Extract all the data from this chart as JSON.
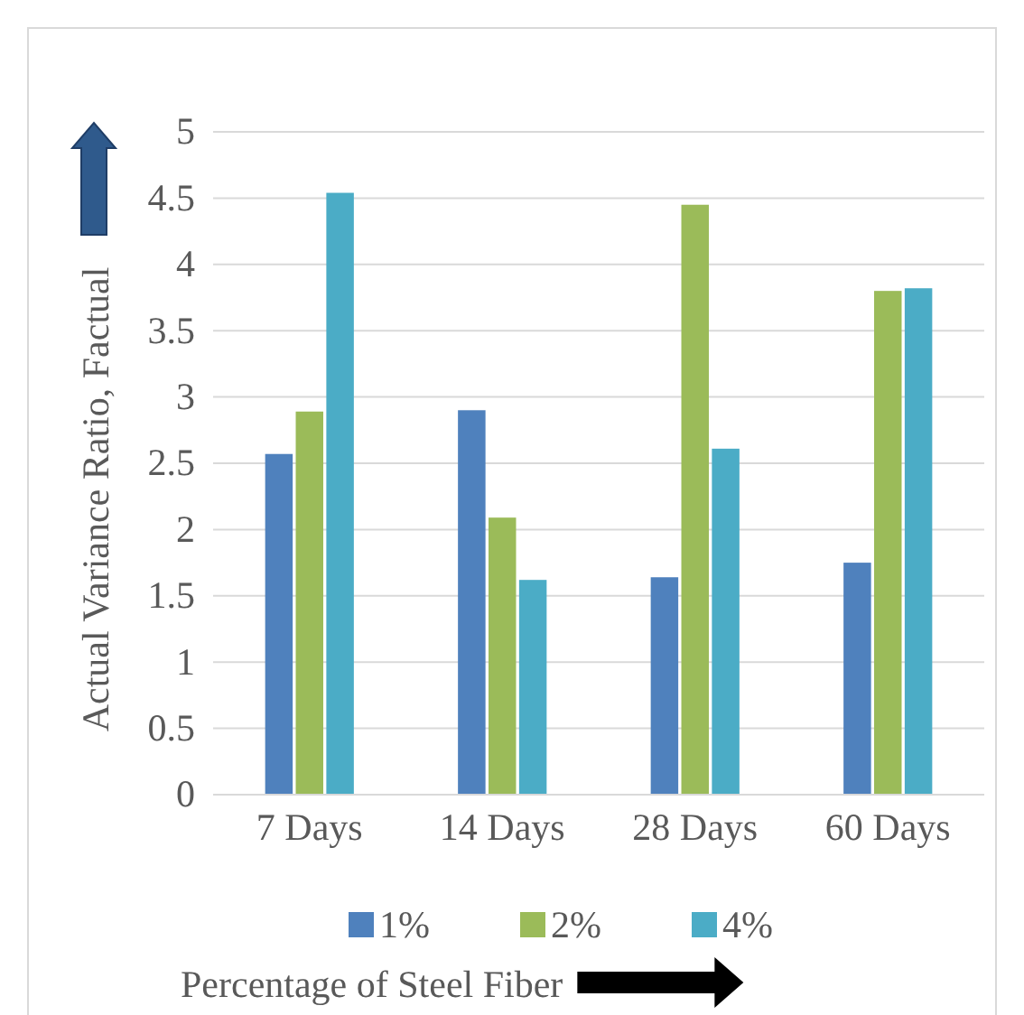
{
  "chart_data": {
    "type": "bar",
    "xlabel": "Percentage of Steel Fiber",
    "ylabel": "Actual Variance Ratio, Factual",
    "categories": [
      "7 Days",
      "14 Days",
      "28 Days",
      "60 Days"
    ],
    "series": [
      {
        "name": "1%",
        "color": "#4f81bd",
        "values": [
          2.57,
          2.9,
          1.64,
          1.75
        ]
      },
      {
        "name": "2%",
        "color": "#9bbb59",
        "values": [
          2.89,
          2.09,
          4.45,
          3.8
        ]
      },
      {
        "name": "4%",
        "color": "#4bacc6",
        "values": [
          4.54,
          1.62,
          2.61,
          3.82
        ]
      }
    ],
    "ylim": [
      0,
      5
    ],
    "yticks": [
      0,
      0.5,
      1,
      1.5,
      2,
      2.5,
      3,
      3.5,
      4,
      4.5,
      5
    ],
    "grid": "y",
    "legend": "bottom"
  }
}
